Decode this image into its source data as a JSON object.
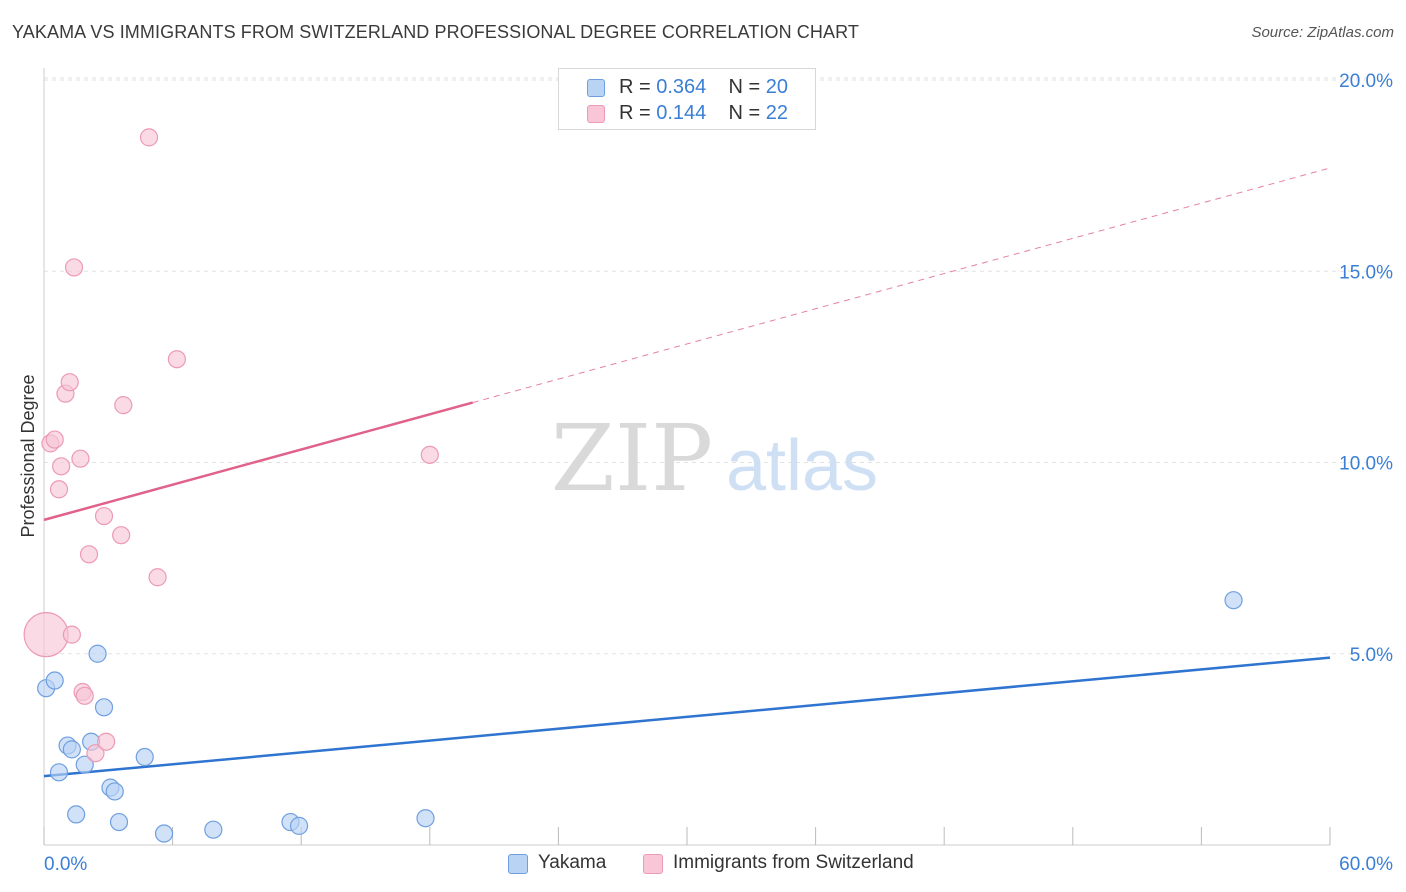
{
  "title": "YAKAMA VS IMMIGRANTS FROM SWITZERLAND PROFESSIONAL DEGREE CORRELATION CHART",
  "source": "Source: ZipAtlas.com",
  "watermark": {
    "zip": "ZIP",
    "atlas": "atlas"
  },
  "legend": {
    "rows": [
      {
        "r_label": "R =",
        "r_value": "0.364",
        "n_label": "N =",
        "n_value": "20"
      },
      {
        "r_label": "R =",
        "r_value": "0.144",
        "n_label": "N =",
        "n_value": "22"
      }
    ]
  },
  "bottom_legend": {
    "series1": "Yakama",
    "series2": "Immigrants from Switzerland"
  },
  "chart_data": {
    "type": "scatter",
    "title": "YAKAMA VS IMMIGRANTS FROM SWITZERLAND PROFESSIONAL DEGREE CORRELATION CHART",
    "xlabel": "",
    "ylabel": "Professional Degree",
    "xlim": [
      0,
      60
    ],
    "ylim": [
      0,
      20.5
    ],
    "x_tick_labels": [
      "0.0%",
      "60.0%"
    ],
    "y_ticks": [
      5,
      10,
      15,
      20
    ],
    "y_tick_labels": [
      "5.0%",
      "10.0%",
      "15.0%",
      "20.0%"
    ],
    "grid": true,
    "series": [
      {
        "name": "Yakama",
        "color": "#6f9fe0",
        "fill": "#b9d3f5",
        "line_color": "#2f74d0",
        "R": 0.364,
        "N": 20,
        "trend": {
          "x0": 0,
          "y0": 1.8,
          "x1": 60,
          "y1": 4.9,
          "dashed_from": null
        },
        "points": [
          {
            "x": 0.1,
            "y": 4.1,
            "big": false
          },
          {
            "x": 0.5,
            "y": 4.3,
            "big": false
          },
          {
            "x": 0.7,
            "y": 1.9,
            "big": false
          },
          {
            "x": 1.1,
            "y": 2.6,
            "big": false
          },
          {
            "x": 1.3,
            "y": 2.5,
            "big": false
          },
          {
            "x": 1.5,
            "y": 0.8,
            "big": false
          },
          {
            "x": 1.9,
            "y": 2.1,
            "big": false
          },
          {
            "x": 2.2,
            "y": 2.7,
            "big": false
          },
          {
            "x": 2.5,
            "y": 5.0,
            "big": false
          },
          {
            "x": 2.8,
            "y": 3.6,
            "big": false
          },
          {
            "x": 3.1,
            "y": 1.5,
            "big": false
          },
          {
            "x": 3.3,
            "y": 1.4,
            "big": false
          },
          {
            "x": 3.5,
            "y": 0.6,
            "big": false
          },
          {
            "x": 4.7,
            "y": 2.3,
            "big": false
          },
          {
            "x": 5.6,
            "y": 0.3,
            "big": false
          },
          {
            "x": 7.9,
            "y": 0.4,
            "big": false
          },
          {
            "x": 11.5,
            "y": 0.6,
            "big": false
          },
          {
            "x": 11.9,
            "y": 0.5,
            "big": false
          },
          {
            "x": 17.8,
            "y": 0.7,
            "big": false
          },
          {
            "x": 55.5,
            "y": 6.4,
            "big": false
          }
        ]
      },
      {
        "name": "Immigrants from Switzerland",
        "color": "#ec9ab5",
        "fill": "#f8c6d6",
        "line_color": "#e0628a",
        "R": 0.144,
        "N": 22,
        "trend": {
          "x0": 0,
          "y0": 8.5,
          "x1": 60,
          "y1": 17.7,
          "dashed_from": 20
        },
        "points": [
          {
            "x": 0.1,
            "y": 5.5,
            "big": true
          },
          {
            "x": 0.3,
            "y": 10.5,
            "big": false
          },
          {
            "x": 0.5,
            "y": 10.6,
            "big": false
          },
          {
            "x": 0.7,
            "y": 9.3,
            "big": false
          },
          {
            "x": 0.8,
            "y": 9.9,
            "big": false
          },
          {
            "x": 1.0,
            "y": 11.8,
            "big": false
          },
          {
            "x": 1.2,
            "y": 12.1,
            "big": false
          },
          {
            "x": 1.3,
            "y": 5.5,
            "big": false
          },
          {
            "x": 1.4,
            "y": 15.1,
            "big": false
          },
          {
            "x": 1.7,
            "y": 10.1,
            "big": false
          },
          {
            "x": 1.8,
            "y": 4.0,
            "big": false
          },
          {
            "x": 1.9,
            "y": 3.9,
            "big": false
          },
          {
            "x": 2.1,
            "y": 7.6,
            "big": false
          },
          {
            "x": 2.4,
            "y": 2.4,
            "big": false
          },
          {
            "x": 2.8,
            "y": 8.6,
            "big": false
          },
          {
            "x": 2.9,
            "y": 2.7,
            "big": false
          },
          {
            "x": 3.6,
            "y": 8.1,
            "big": false
          },
          {
            "x": 3.7,
            "y": 11.5,
            "big": false
          },
          {
            "x": 4.9,
            "y": 18.5,
            "big": false
          },
          {
            "x": 5.3,
            "y": 7.0,
            "big": false
          },
          {
            "x": 6.2,
            "y": 12.7,
            "big": false
          },
          {
            "x": 18.0,
            "y": 10.2,
            "big": false
          }
        ]
      }
    ]
  }
}
